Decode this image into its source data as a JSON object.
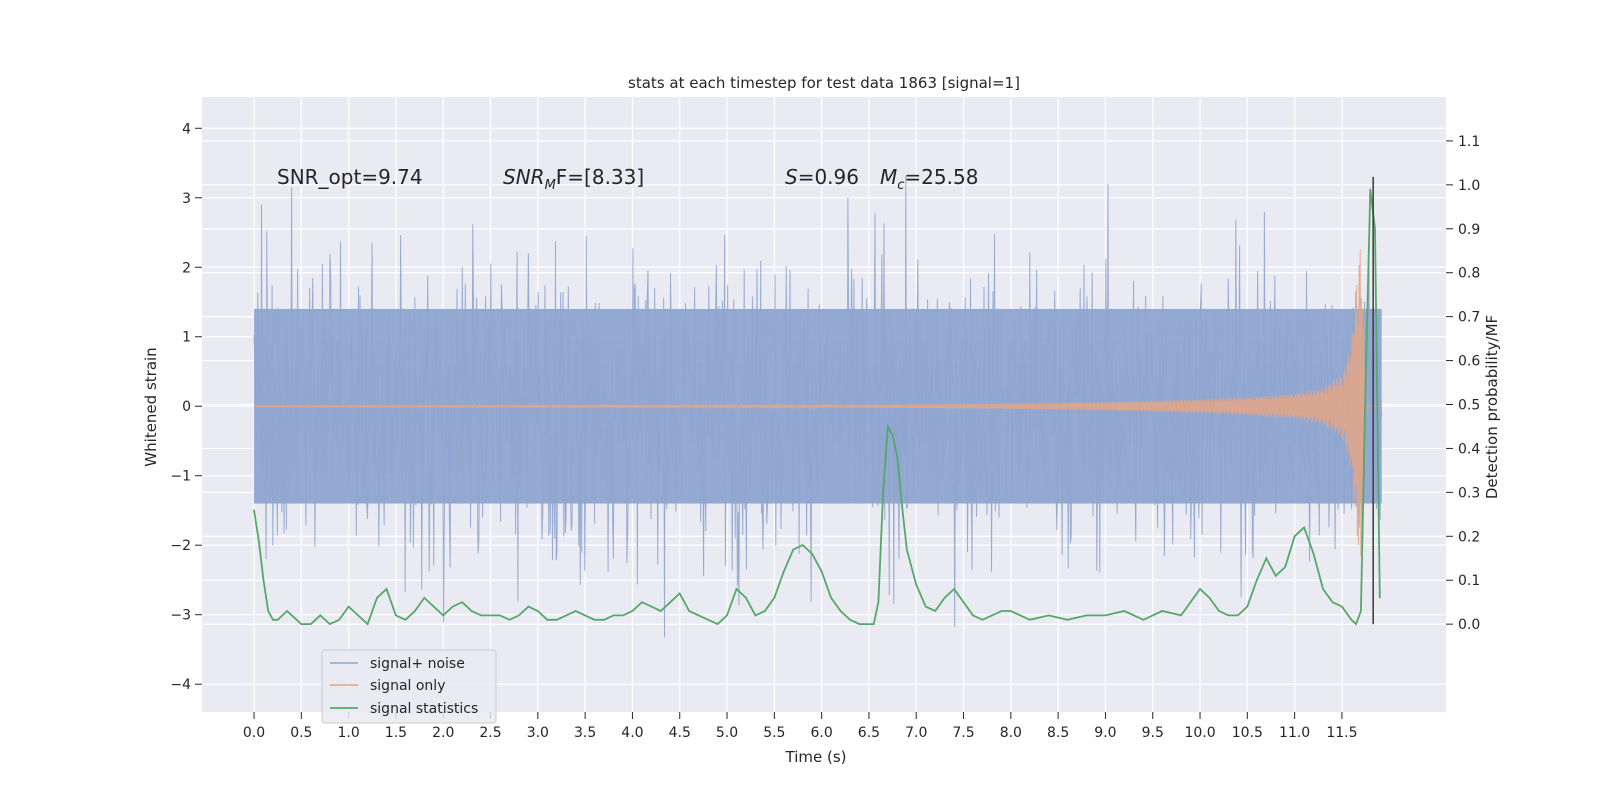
{
  "chart_data": {
    "type": "line",
    "title": "stats at each timestep for test data 1863 [signal=1]",
    "xlabel": "Time (s)",
    "ylabel": "Whitened strain",
    "y2label": "Detection probability/MF",
    "xlim": [
      -0.55,
      12.6
    ],
    "ylim": [
      -4.4,
      4.45
    ],
    "y2lim": [
      -0.2,
      1.2
    ],
    "x_ticks": [
      0.0,
      0.5,
      1.0,
      1.5,
      2.0,
      2.5,
      3.0,
      3.5,
      4.0,
      4.5,
      5.0,
      5.5,
      6.0,
      6.5,
      7.0,
      7.5,
      8.0,
      8.5,
      9.0,
      9.5,
      10.0,
      10.5,
      11.0,
      11.5
    ],
    "x_tick_labels": [
      "0.0",
      "0.5",
      "1.0",
      "1.5",
      "2.0",
      "2.5",
      "3.0",
      "3.5",
      "4.0",
      "4.5",
      "5.0",
      "5.5",
      "6.0",
      "6.5",
      "7.0",
      "7.5",
      "8.0",
      "8.5",
      "9.0",
      "9.5",
      "10.0",
      "10.5",
      "11.0",
      "11.5"
    ],
    "y_ticks": [
      -4,
      -3,
      -2,
      -1,
      0,
      1,
      2,
      3,
      4
    ],
    "y_tick_labels": [
      "−4",
      "−3",
      "−2",
      "−1",
      "0",
      "1",
      "2",
      "3",
      "4"
    ],
    "y2_ticks": [
      0.0,
      0.1,
      0.2,
      0.3,
      0.4,
      0.5,
      0.6,
      0.7,
      0.8,
      0.9,
      1.0,
      1.1
    ],
    "y2_tick_labels": [
      "0.0",
      "0.1",
      "0.2",
      "0.3",
      "0.4",
      "0.5",
      "0.6",
      "0.7",
      "0.8",
      "0.9",
      "1.0",
      "1.1"
    ],
    "grid": true,
    "legend_position": "bottom-left",
    "annotations": {
      "snr_opt": "SNR_opt=9.74",
      "snr_mf_main": "SNR",
      "snr_mf_sub": "M",
      "snr_mf_rest": "F=[8.33]",
      "s_main": "S",
      "s_rest": "=0.96",
      "mc_main": "M",
      "mc_sub": "c",
      "mc_rest": "=25.58"
    },
    "series": [
      {
        "name": "signal+ noise",
        "color": "#8fa5cf",
        "axis": "left",
        "x_range": [
          0.0,
          11.92
        ],
        "typical_envelope": [
          -1.4,
          1.4
        ],
        "max": 4.1,
        "min": -3.8
      },
      {
        "name": "signal only",
        "color": "#e0a58a",
        "axis": "left",
        "x_range": [
          0.0,
          11.92
        ],
        "envelope_x": [
          0.0,
          6.0,
          7.0,
          8.0,
          9.0,
          10.0,
          10.5,
          11.0,
          11.3,
          11.5,
          11.6,
          11.65,
          11.7,
          11.75
        ],
        "envelope_amp": [
          0.01,
          0.015,
          0.025,
          0.04,
          0.06,
          0.1,
          0.13,
          0.18,
          0.26,
          0.45,
          0.9,
          1.8,
          2.4,
          0.3
        ]
      },
      {
        "name": "signal statistics",
        "color": "#55a868",
        "axis": "right",
        "x": [
          0.0,
          0.05,
          0.1,
          0.15,
          0.2,
          0.25,
          0.3,
          0.35,
          0.4,
          0.5,
          0.6,
          0.7,
          0.8,
          0.9,
          1.0,
          1.1,
          1.2,
          1.3,
          1.4,
          1.5,
          1.6,
          1.7,
          1.8,
          1.9,
          2.0,
          2.1,
          2.2,
          2.3,
          2.4,
          2.5,
          2.6,
          2.7,
          2.8,
          2.9,
          3.0,
          3.1,
          3.2,
          3.3,
          3.4,
          3.5,
          3.6,
          3.7,
          3.8,
          3.9,
          4.0,
          4.1,
          4.2,
          4.3,
          4.4,
          4.5,
          4.6,
          4.7,
          4.8,
          4.9,
          5.0,
          5.1,
          5.2,
          5.3,
          5.4,
          5.5,
          5.6,
          5.7,
          5.8,
          5.9,
          6.0,
          6.1,
          6.2,
          6.3,
          6.4,
          6.5,
          6.55,
          6.6,
          6.65,
          6.7,
          6.75,
          6.8,
          6.85,
          6.9,
          7.0,
          7.1,
          7.2,
          7.3,
          7.4,
          7.5,
          7.6,
          7.7,
          7.8,
          7.9,
          8.0,
          8.2,
          8.4,
          8.6,
          8.8,
          9.0,
          9.2,
          9.4,
          9.6,
          9.8,
          10.0,
          10.1,
          10.2,
          10.3,
          10.4,
          10.5,
          10.6,
          10.7,
          10.8,
          10.9,
          11.0,
          11.1,
          11.2,
          11.3,
          11.4,
          11.5,
          11.6,
          11.65,
          11.7,
          11.75,
          11.8,
          11.85,
          11.9
        ],
        "values": [
          0.26,
          0.19,
          0.1,
          0.03,
          0.01,
          0.01,
          0.02,
          0.03,
          0.02,
          0.0,
          0.0,
          0.02,
          0.0,
          0.01,
          0.04,
          0.02,
          0.0,
          0.06,
          0.08,
          0.02,
          0.01,
          0.03,
          0.06,
          0.04,
          0.02,
          0.04,
          0.05,
          0.03,
          0.02,
          0.02,
          0.02,
          0.01,
          0.02,
          0.04,
          0.03,
          0.01,
          0.01,
          0.02,
          0.03,
          0.02,
          0.01,
          0.01,
          0.02,
          0.02,
          0.03,
          0.05,
          0.04,
          0.03,
          0.05,
          0.07,
          0.03,
          0.02,
          0.01,
          0.0,
          0.02,
          0.08,
          0.06,
          0.02,
          0.03,
          0.06,
          0.12,
          0.17,
          0.18,
          0.16,
          0.12,
          0.06,
          0.03,
          0.01,
          0.0,
          0.0,
          0.0,
          0.05,
          0.3,
          0.45,
          0.43,
          0.38,
          0.27,
          0.17,
          0.09,
          0.04,
          0.03,
          0.06,
          0.08,
          0.05,
          0.02,
          0.01,
          0.02,
          0.03,
          0.03,
          0.01,
          0.02,
          0.01,
          0.02,
          0.02,
          0.03,
          0.01,
          0.03,
          0.02,
          0.08,
          0.06,
          0.03,
          0.02,
          0.02,
          0.04,
          0.1,
          0.15,
          0.11,
          0.13,
          0.2,
          0.22,
          0.16,
          0.08,
          0.05,
          0.04,
          0.01,
          0.0,
          0.03,
          0.55,
          0.99,
          0.9,
          0.06
        ]
      }
    ]
  }
}
